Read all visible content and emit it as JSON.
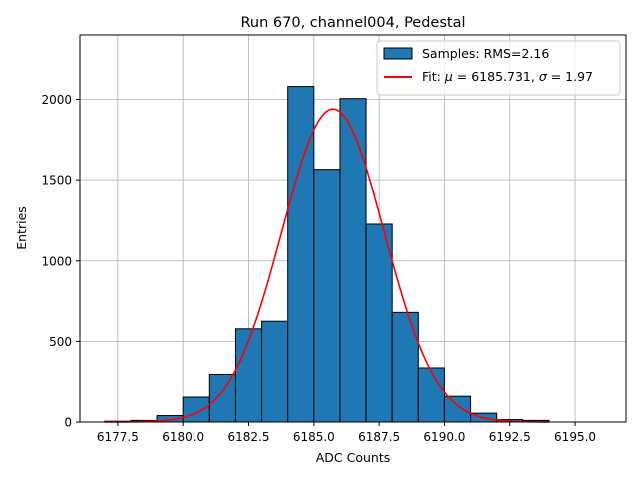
{
  "chart_data": {
    "type": "bar",
    "title": "Run 670, channel004, Pedestal",
    "xlabel": "ADC Counts",
    "ylabel": "Entries",
    "xlim": [
      6176.05,
      6196.95
    ],
    "ylim": [
      0,
      2400
    ],
    "grid": true,
    "legend_position": "top-right",
    "x_ticks": [
      6177.5,
      6180.0,
      6182.5,
      6185.0,
      6187.5,
      6190.0,
      6192.5,
      6195.0
    ],
    "x_tick_labels": [
      "6177.5",
      "6180.0",
      "6182.5",
      "6185.0",
      "6187.5",
      "6190.0",
      "6192.5",
      "6195.0"
    ],
    "y_ticks": [
      0,
      500,
      1000,
      1500,
      2000
    ],
    "y_tick_labels": [
      "0",
      "500",
      "1000",
      "1500",
      "2000"
    ],
    "histogram": {
      "name": "Samples: RMS=2.16",
      "color": "#1f77b4",
      "edge_color": "#000000",
      "bin_edges": [
        6177,
        6178,
        6179,
        6180,
        6181,
        6182,
        6183,
        6184,
        6185,
        6186,
        6187,
        6188,
        6189,
        6190,
        6191,
        6192,
        6193,
        6194,
        6195,
        6196
      ],
      "values": [
        5,
        10,
        40,
        155,
        295,
        578,
        625,
        2080,
        1565,
        2005,
        1228,
        680,
        335,
        160,
        55,
        15,
        10,
        0,
        0
      ]
    },
    "fit": {
      "name_prefix": "Fit: ",
      "mu_symbol": "μ",
      "mu_text": " = 6185.731, ",
      "sigma_symbol": "σ",
      "sigma_text": " = 1.97",
      "mu": 6185.731,
      "sigma": 1.97,
      "amplitude": 1940,
      "x_range": [
        6177,
        6194
      ],
      "color": "#ff0000"
    }
  }
}
